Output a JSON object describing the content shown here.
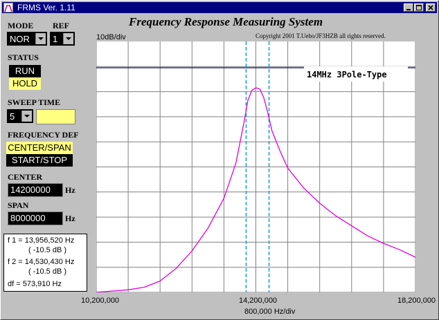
{
  "window": {
    "title": "FRMS  Ver. 1.11"
  },
  "header": {
    "title": "Frequency Response Measuring System",
    "copyright": "Copyright 2001 T.Uebo/JF3HZB all rights reserved."
  },
  "controls": {
    "mode_label": "MODE",
    "mode_value": "NOR",
    "ref_label": "REF",
    "ref_value": "1",
    "status_label": "STATUS",
    "run_label": "RUN",
    "hold_label": "HOLD",
    "sweep_label": "SWEEP TIME",
    "sweep_value": "5",
    "freqdef_label": "FREQUENCY DEF",
    "center_span_label": "CENTER/SPAN",
    "start_stop_label": "START/STOP",
    "center_label": "CENTER",
    "center_value": "14200000",
    "span_label": "SPAN",
    "span_value": "8000000",
    "unit_hz": "Hz"
  },
  "measurements": {
    "f1": "f 1 = 13,956,520 Hz",
    "f1_db": "( -10.5 dB )",
    "f2": "f 2 = 14,530,430 Hz",
    "f2_db": "( -10.5 dB )",
    "df": "df = 573,910 Hz"
  },
  "chart_data": {
    "type": "line",
    "ylabel": "10dB/div",
    "xlabel": "800,000 Hz/div",
    "annotation": "14MHz 3Pole-Type",
    "x_tick_labels": [
      "10,200,000",
      "14,200,000",
      "18,200,000"
    ],
    "xlim": [
      10200000,
      18200000
    ],
    "ylim_div": [
      0,
      10
    ],
    "reference_line_div": 0,
    "markers_hz": [
      13956520,
      14530430
    ],
    "series": [
      {
        "color": "#e000e0",
        "x": [
          10200000,
          10600000,
          11000000,
          11400000,
          11800000,
          12200000,
          12600000,
          13000000,
          13400000,
          13700000,
          13900000,
          14000000,
          14100000,
          14200000,
          14300000,
          14400000,
          14500000,
          14600000,
          14800000,
          15000000,
          15400000,
          15800000,
          16200000,
          16600000,
          17000000,
          17400000,
          17800000,
          18200000
        ],
        "y_div": [
          8.95,
          8.9,
          8.85,
          8.75,
          8.5,
          8.0,
          7.3,
          6.4,
          5.2,
          3.8,
          2.2,
          1.3,
          0.9,
          0.8,
          0.85,
          1.2,
          1.8,
          2.5,
          3.3,
          4.0,
          4.8,
          5.4,
          5.9,
          6.3,
          6.7,
          7.0,
          7.25,
          7.55
        ]
      }
    ]
  }
}
